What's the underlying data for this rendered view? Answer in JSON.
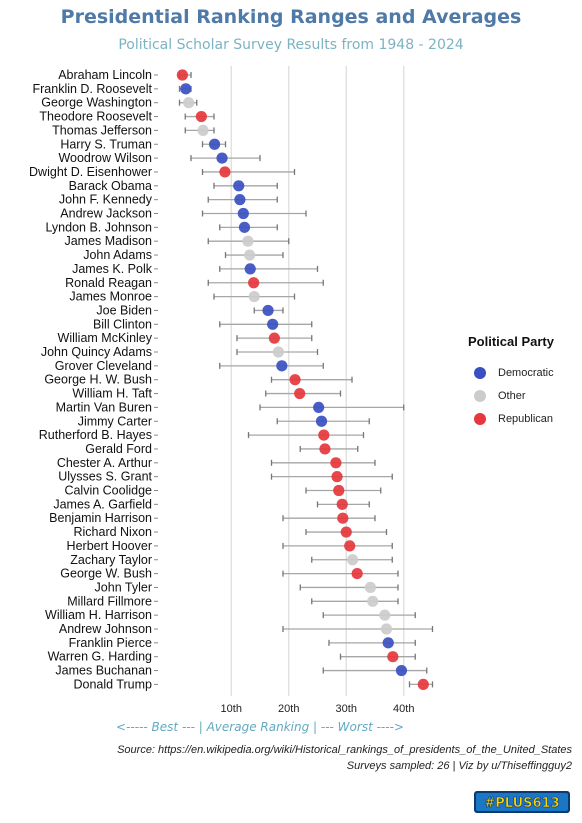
{
  "title": "Presidential Ranking Ranges and Averages",
  "subtitle": "Political Scholar Survey Results from 1948 - 2024",
  "x_caption": "<----- Best --- | Average Ranking | --- Worst ---->",
  "source_note": "Source: https://en.wikipedia.org/wiki/Historical_rankings_of_presidents_of_the_United_States",
  "credit_note": "Surveys sampled: 26 | Viz by u/Thiseffingguy2",
  "logo_text": "#PLUS613",
  "legend": {
    "title": "Political Party",
    "items": [
      {
        "label": "Democratic",
        "color": "#3a4fc1"
      },
      {
        "label": "Other",
        "color": "#cccccc"
      },
      {
        "label": "Republican",
        "color": "#e5373c"
      }
    ]
  },
  "chart_data": {
    "type": "scatter",
    "title": "Presidential Ranking Ranges and Averages",
    "xlabel": "<----- Best --- | Average Ranking | --- Worst ---->",
    "xlim": [
      -1,
      46
    ],
    "xticks": [
      10,
      20,
      30,
      40
    ],
    "xtick_labels": [
      "10th",
      "20th",
      "30th",
      "40th"
    ],
    "grid": "vertical",
    "legend_position": "right",
    "colors": {
      "Democratic": "#3a4fc1",
      "Other": "#cccccc",
      "Republican": "#e5373c"
    },
    "presidents": [
      {
        "name": "Abraham Lincoln",
        "party": "Republican",
        "avg": 1.5,
        "min": 1,
        "max": 3
      },
      {
        "name": "Franklin D. Roosevelt",
        "party": "Democratic",
        "avg": 2.1,
        "min": 1,
        "max": 3
      },
      {
        "name": "George Washington",
        "party": "Other",
        "avg": 2.6,
        "min": 1,
        "max": 4
      },
      {
        "name": "Theodore Roosevelt",
        "party": "Republican",
        "avg": 4.8,
        "min": 2,
        "max": 7
      },
      {
        "name": "Thomas Jefferson",
        "party": "Other",
        "avg": 5.1,
        "min": 2,
        "max": 7
      },
      {
        "name": "Harry S. Truman",
        "party": "Democratic",
        "avg": 7.1,
        "min": 5,
        "max": 9
      },
      {
        "name": "Woodrow Wilson",
        "party": "Democratic",
        "avg": 8.4,
        "min": 3,
        "max": 15
      },
      {
        "name": "Dwight D. Eisenhower",
        "party": "Republican",
        "avg": 8.9,
        "min": 5,
        "max": 21
      },
      {
        "name": "Barack Obama",
        "party": "Democratic",
        "avg": 11.3,
        "min": 7,
        "max": 18
      },
      {
        "name": "John F. Kennedy",
        "party": "Democratic",
        "avg": 11.5,
        "min": 6,
        "max": 18
      },
      {
        "name": "Andrew Jackson",
        "party": "Democratic",
        "avg": 12.1,
        "min": 5,
        "max": 23
      },
      {
        "name": "Lyndon B. Johnson",
        "party": "Democratic",
        "avg": 12.3,
        "min": 8,
        "max": 18
      },
      {
        "name": "James Madison",
        "party": "Other",
        "avg": 12.9,
        "min": 6,
        "max": 20
      },
      {
        "name": "John Adams",
        "party": "Other",
        "avg": 13.2,
        "min": 9,
        "max": 19
      },
      {
        "name": "James K. Polk",
        "party": "Democratic",
        "avg": 13.3,
        "min": 8,
        "max": 25
      },
      {
        "name": "Ronald Reagan",
        "party": "Republican",
        "avg": 13.9,
        "min": 6,
        "max": 26
      },
      {
        "name": "James Monroe",
        "party": "Other",
        "avg": 14.0,
        "min": 7,
        "max": 21
      },
      {
        "name": "Joe Biden",
        "party": "Democratic",
        "avg": 16.4,
        "min": 14,
        "max": 19
      },
      {
        "name": "Bill Clinton",
        "party": "Democratic",
        "avg": 17.2,
        "min": 8,
        "max": 24
      },
      {
        "name": "William McKinley",
        "party": "Republican",
        "avg": 17.5,
        "min": 11,
        "max": 24
      },
      {
        "name": "John Quincy Adams",
        "party": "Other",
        "avg": 18.2,
        "min": 11,
        "max": 25
      },
      {
        "name": "Grover Cleveland",
        "party": "Democratic",
        "avg": 18.8,
        "min": 8,
        "max": 26
      },
      {
        "name": "George H. W. Bush",
        "party": "Republican",
        "avg": 21.1,
        "min": 17,
        "max": 31
      },
      {
        "name": "William H. Taft",
        "party": "Republican",
        "avg": 21.9,
        "min": 16,
        "max": 29
      },
      {
        "name": "Martin Van Buren",
        "party": "Democratic",
        "avg": 25.2,
        "min": 15,
        "max": 40
      },
      {
        "name": "Jimmy Carter",
        "party": "Democratic",
        "avg": 25.7,
        "min": 18,
        "max": 34
      },
      {
        "name": "Rutherford B. Hayes",
        "party": "Republican",
        "avg": 26.1,
        "min": 13,
        "max": 33
      },
      {
        "name": "Gerald Ford",
        "party": "Republican",
        "avg": 26.3,
        "min": 22,
        "max": 32
      },
      {
        "name": "Chester A. Arthur",
        "party": "Republican",
        "avg": 28.2,
        "min": 17,
        "max": 35
      },
      {
        "name": "Ulysses S. Grant",
        "party": "Republican",
        "avg": 28.4,
        "min": 17,
        "max": 38
      },
      {
        "name": "Calvin Coolidge",
        "party": "Republican",
        "avg": 28.7,
        "min": 23,
        "max": 36
      },
      {
        "name": "James A. Garfield",
        "party": "Republican",
        "avg": 29.3,
        "min": 25,
        "max": 34
      },
      {
        "name": "Benjamin Harrison",
        "party": "Republican",
        "avg": 29.4,
        "min": 19,
        "max": 35
      },
      {
        "name": "Richard Nixon",
        "party": "Republican",
        "avg": 30.0,
        "min": 23,
        "max": 37
      },
      {
        "name": "Herbert Hoover",
        "party": "Republican",
        "avg": 30.6,
        "min": 19,
        "max": 38
      },
      {
        "name": "Zachary Taylor",
        "party": "Other",
        "avg": 31.1,
        "min": 24,
        "max": 38
      },
      {
        "name": "George W. Bush",
        "party": "Republican",
        "avg": 31.9,
        "min": 19,
        "max": 39
      },
      {
        "name": "John Tyler",
        "party": "Other",
        "avg": 34.2,
        "min": 22,
        "max": 39
      },
      {
        "name": "Millard Fillmore",
        "party": "Other",
        "avg": 34.6,
        "min": 24,
        "max": 39
      },
      {
        "name": "William H. Harrison",
        "party": "Other",
        "avg": 36.7,
        "min": 26,
        "max": 42
      },
      {
        "name": "Andrew Johnson",
        "party": "Other",
        "avg": 37.0,
        "min": 19,
        "max": 45
      },
      {
        "name": "Franklin Pierce",
        "party": "Democratic",
        "avg": 37.3,
        "min": 27,
        "max": 42
      },
      {
        "name": "Warren G. Harding",
        "party": "Republican",
        "avg": 38.1,
        "min": 29,
        "max": 42
      },
      {
        "name": "James Buchanan",
        "party": "Democratic",
        "avg": 39.6,
        "min": 26,
        "max": 44
      },
      {
        "name": "Donald Trump",
        "party": "Republican",
        "avg": 43.4,
        "min": 41,
        "max": 45
      }
    ]
  }
}
